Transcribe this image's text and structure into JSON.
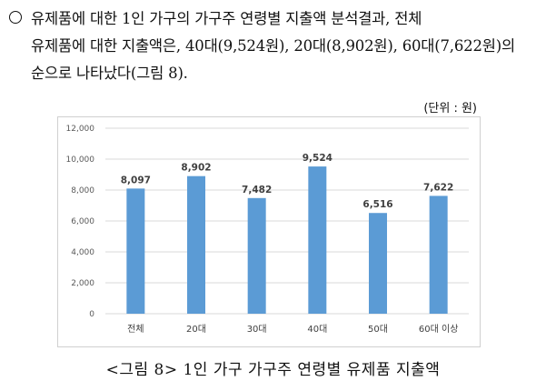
{
  "paragraph": {
    "line1": "유제품에 대한 1인 가구의 가구주 연령별 지출액 분석결과, 전체",
    "line2": "유제품에 대한 지출액은, 40대(9,524원), 20대(8,902원), 60대(7,622원)의",
    "line3": "순으로 나타났다(그림 8)."
  },
  "unit_label": "(단위 : 원)",
  "caption": "<그림 8> 1인 가구 가구주 연령별 유제품 지출액",
  "chart_data": {
    "type": "bar",
    "categories": [
      "전체",
      "20대",
      "30대",
      "40대",
      "50대",
      "60대 이상"
    ],
    "values": [
      8097,
      8902,
      7482,
      9524,
      6516,
      7622
    ],
    "value_labels": [
      "8,097",
      "8,902",
      "7,482",
      "9,524",
      "6,516",
      "7,622"
    ],
    "ylim": [
      0,
      12000
    ],
    "yticks": [
      0,
      2000,
      4000,
      6000,
      8000,
      10000,
      12000
    ],
    "ytick_labels": [
      "0",
      "2,000",
      "4,000",
      "6,000",
      "8,000",
      "10,000",
      "12,000"
    ],
    "grid": true,
    "legend": "none",
    "bar_color": "#5B9BD5",
    "grid_color": "#D9D9D9"
  }
}
